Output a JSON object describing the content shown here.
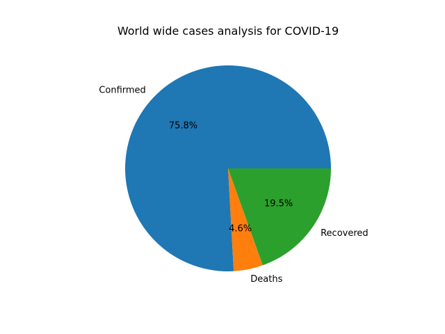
{
  "chart_data": {
    "type": "pie",
    "title": "World wide cases analysis for COVID-19",
    "slices": [
      {
        "label": "Confirmed",
        "value": 75.8,
        "pct_label": "75.8%",
        "color": "#1f77b4"
      },
      {
        "label": "Deaths",
        "value": 4.6,
        "pct_label": "4.6%",
        "color": "#ff7f0e"
      },
      {
        "label": "Recovered",
        "value": 19.5,
        "pct_label": "19.5%",
        "color": "#2ca02c"
      }
    ],
    "start_angle_deg": 0,
    "direction": "counterclockwise"
  }
}
